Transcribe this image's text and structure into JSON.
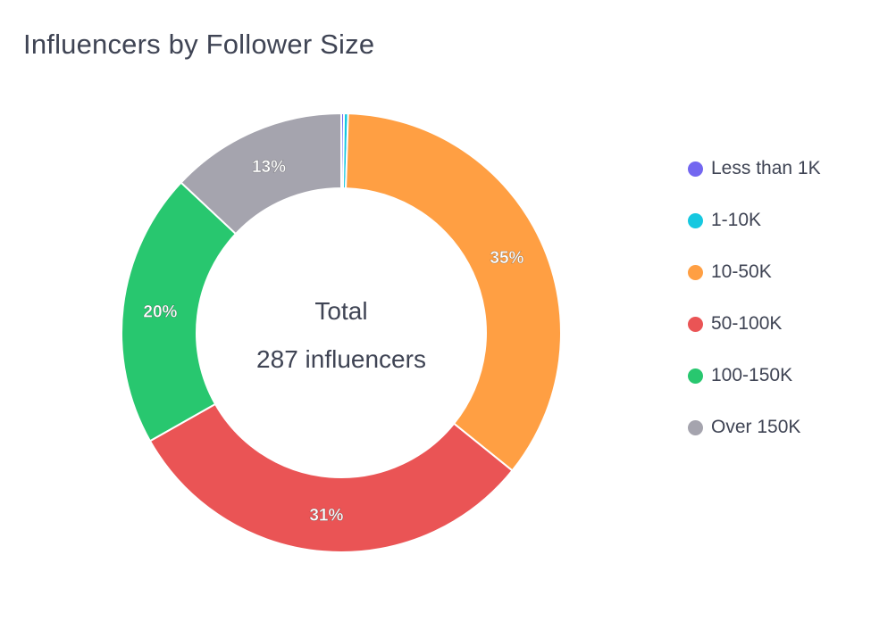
{
  "chart_data": {
    "type": "pie",
    "title": "Influencers by Follower Size",
    "center_label": {
      "line1": "Total",
      "line2": "287 influencers"
    },
    "categories": [
      "Less than 1K",
      "1-10K",
      "10-50K",
      "50-100K",
      "100-150K",
      "Over 150K"
    ],
    "values": [
      0.2,
      0.3,
      35.3,
      31.0,
      20.2,
      13.0
    ],
    "data_labels": [
      "",
      "",
      "35%",
      "31%",
      "20%",
      "13%"
    ],
    "colors": [
      "#7367f0",
      "#16c8e0",
      "#ff9f43",
      "#ea5455",
      "#28c76f",
      "#a5a4ae"
    ],
    "legend_position": "right"
  }
}
